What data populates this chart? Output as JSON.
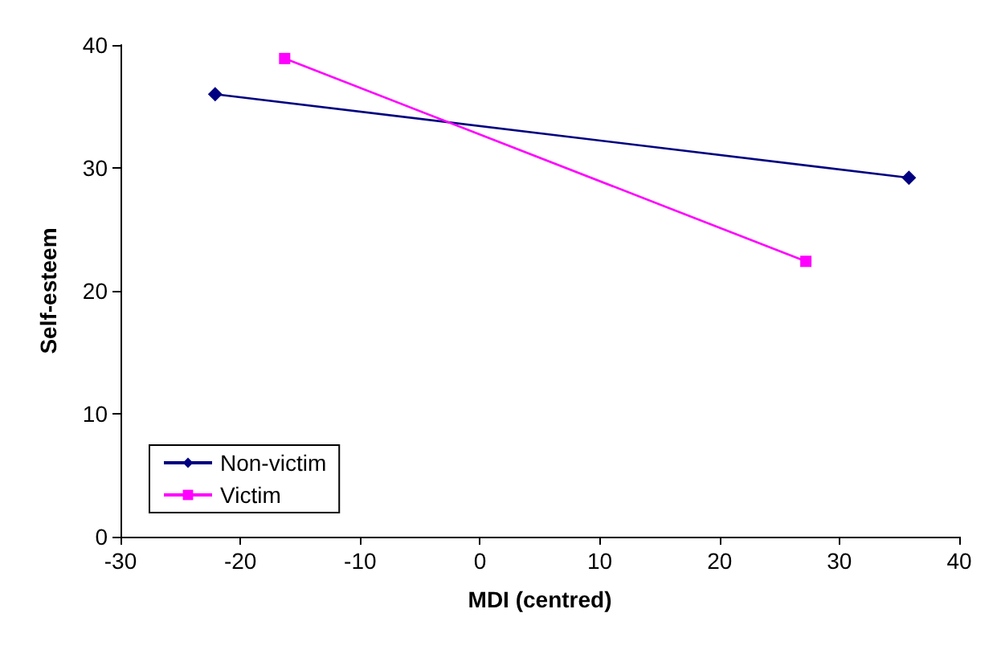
{
  "chart_data": {
    "type": "line",
    "xlabel": "MDI (centred)",
    "ylabel": "Self-esteem",
    "xlim": [
      -30,
      40
    ],
    "xticks": [
      -30,
      -20,
      -10,
      0,
      10,
      20,
      30,
      40
    ],
    "ylim": [
      0,
      40
    ],
    "yticks": [
      0,
      10,
      20,
      30,
      40
    ],
    "grid": false,
    "legend": "bottom left",
    "series": [
      {
        "name": "Non-victim",
        "color": "#000080",
        "marker": "diamond",
        "x": [
          -22.1,
          35.8
        ],
        "values": [
          36.0,
          29.2
        ]
      },
      {
        "name": "Victim",
        "color": "#ff00ff",
        "marker": "square",
        "x": [
          -16.3,
          27.2
        ],
        "values": [
          38.9,
          22.4
        ]
      }
    ]
  }
}
